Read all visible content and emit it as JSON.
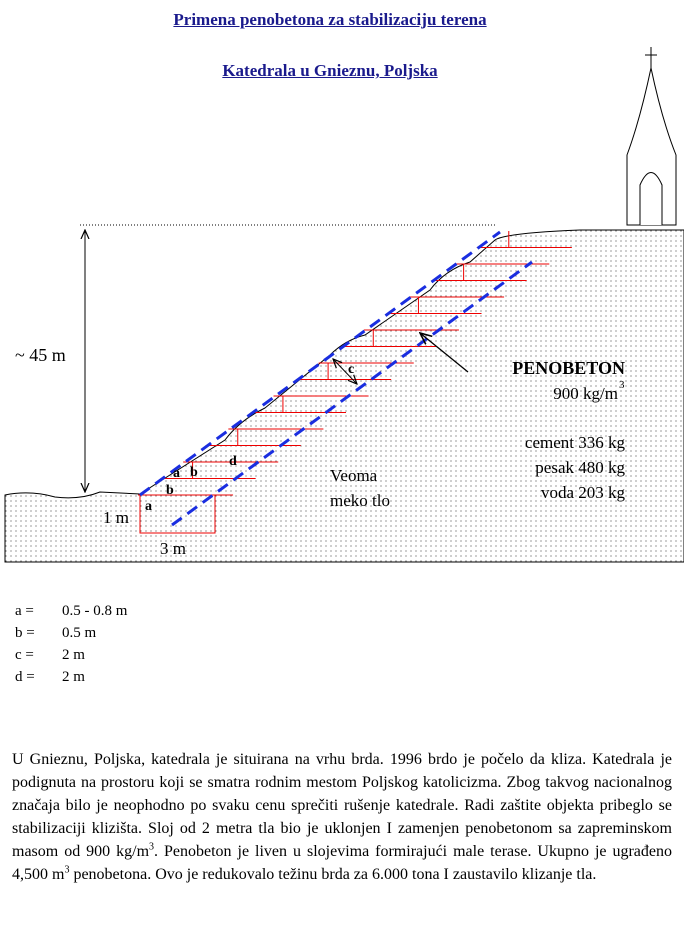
{
  "header": {
    "title": "Primena penobetona za  stabilizaciju terena",
    "subtitle": "Katedrala u Gnieznu, Poljska"
  },
  "diagram": {
    "height_label": "~ 45 m",
    "material": {
      "name": "PENOBETON",
      "density": "900 kg/m",
      "density_exp": "3",
      "components": [
        "cement 336 kg",
        "pesak 480 kg",
        "voda 203 kg"
      ]
    },
    "soil": [
      "Veoma",
      "meko tlo"
    ],
    "footing_height": "1 m",
    "footing_width": "3 m",
    "marks": [
      "a",
      "b",
      "a",
      "b",
      "d",
      "c"
    ]
  },
  "legend": {
    "rows": [
      [
        "a =",
        "0.5 - 0.8 m"
      ],
      [
        "b =",
        "0.5 m"
      ],
      [
        "c =",
        "2 m"
      ],
      [
        "d =",
        "2 m"
      ]
    ]
  },
  "paragraph": [
    "U Gnieznu, Poljska, katedrala je situirana na vrhu brda. 1996 brdo je počelo da kliza. Katedrala je podignuta na prostoru koji se smatra rodnim mestom Poljskog katolicizma. Zbog takvog nacionalnog značaja bilo je neophodno po svaku cenu sprečiti rušenje katedrale. Radi zaštite objekta pribeglo se stabilizaciji klizišta.  Sloj od 2 metra tla bio je uklonjen I zamenjen penobetonom sa zapreminskom masom od 900 kg/m",
    "3",
    ". Penobeton je  liven u slojevima formirajući male terase.  Ukupno je ugrađeno 4,500 m",
    "3",
    " penobetona.  Ovo je redukovalo težinu brda za 6.000 tona I zaustavilo klizanje tla."
  ]
}
